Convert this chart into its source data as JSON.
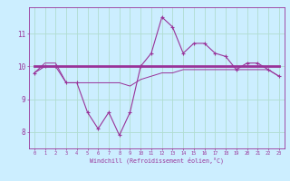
{
  "xlabel": "Windchill (Refroidissement éolien,°C)",
  "bg_color": "#cceeff",
  "grid_color": "#b0ddd0",
  "line_color": "#993399",
  "hours": [
    0,
    1,
    2,
    3,
    4,
    5,
    6,
    7,
    8,
    9,
    10,
    11,
    12,
    13,
    14,
    15,
    16,
    17,
    18,
    19,
    20,
    21,
    22,
    23
  ],
  "windchill": [
    9.8,
    10.0,
    10.0,
    9.5,
    9.5,
    8.6,
    8.1,
    8.6,
    7.9,
    8.6,
    10.0,
    10.4,
    11.5,
    11.2,
    10.4,
    10.7,
    10.7,
    10.4,
    10.3,
    9.9,
    10.1,
    10.1,
    9.9,
    9.7
  ],
  "temp": [
    9.8,
    10.1,
    10.1,
    9.5,
    9.5,
    9.5,
    9.5,
    9.5,
    9.5,
    9.4,
    9.6,
    9.7,
    9.8,
    9.8,
    9.9,
    9.9,
    9.9,
    9.9,
    9.9,
    9.9,
    9.9,
    9.9,
    9.9,
    9.7
  ],
  "mean_line": [
    10.0,
    10.0,
    10.0,
    10.0,
    10.0,
    10.0,
    10.0,
    10.0,
    10.0,
    10.0,
    10.0,
    10.0,
    10.0,
    10.0,
    10.0,
    10.0,
    10.0,
    10.0,
    10.0,
    10.0,
    10.0,
    10.0,
    10.0,
    10.0
  ],
  "yticks": [
    8,
    9,
    10,
    11
  ],
  "ylim": [
    7.5,
    11.8
  ],
  "xlim": [
    -0.5,
    23.5
  ]
}
